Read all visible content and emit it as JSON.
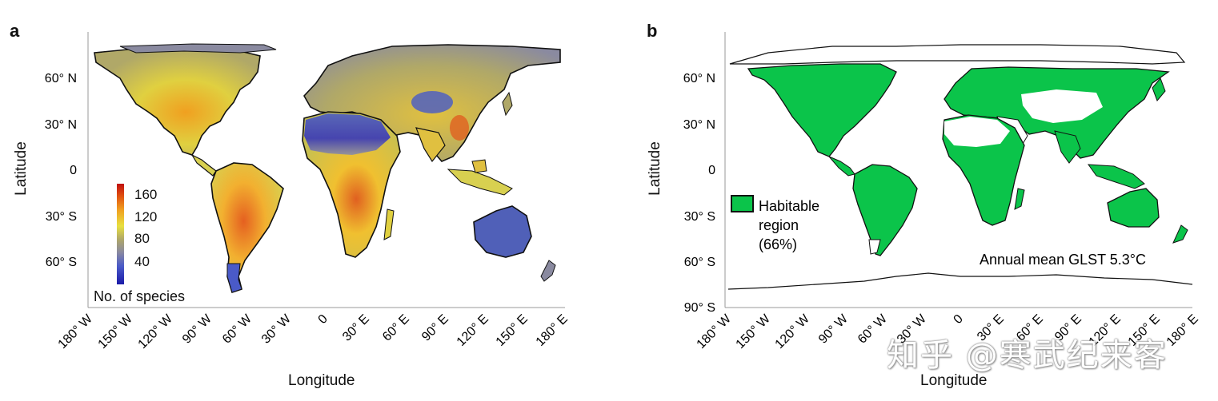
{
  "panel_a": {
    "letter": "a",
    "xlabel": "Longitude",
    "ylabel": "Latitude",
    "lat_ticks": [
      "60° N",
      "30° N",
      "0",
      "30° S",
      "60° S"
    ],
    "lon_ticks": [
      "180° W",
      "150° W",
      "120° W",
      "90° W",
      "60° W",
      "30° W",
      "0",
      "30° E",
      "60° E",
      "90° E",
      "120° E",
      "150° E",
      "180° E"
    ],
    "colorbar": {
      "title": "No. of species",
      "ticks": [
        "160",
        "120",
        "80",
        "40"
      ],
      "range": [
        0,
        170
      ],
      "colors": [
        "#1a1aa8",
        "#4a5ac8",
        "#8a8aa0",
        "#b0a868",
        "#e8e040",
        "#f0a020",
        "#e05010",
        "#c01010"
      ]
    }
  },
  "panel_b": {
    "letter": "b",
    "xlabel": "Longitude",
    "ylabel": "Latitude",
    "lat_ticks": [
      "60° N",
      "30° N",
      "0",
      "30° S",
      "60° S",
      "90° S"
    ],
    "lon_ticks": [
      "180° W",
      "150° W",
      "120° W",
      "90° W",
      "60° W",
      "30° W",
      "0",
      "30° E",
      "60° E",
      "90° E",
      "120° E",
      "150° E",
      "180° E"
    ],
    "legend": {
      "line1": "Habitable",
      "line2": "region",
      "line3": "(66%)",
      "color": "#0bc44a"
    },
    "annotation": "Annual mean GLST 5.3°C"
  },
  "watermark": "知乎 @寒武纪来客"
}
